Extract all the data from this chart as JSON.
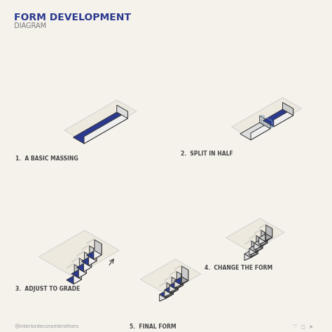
{
  "title": "FORM DEVELOPMENT",
  "subtitle": "DIAGRAM",
  "bg_color": "#F5F2EC",
  "blue": "#2B3A8F",
  "light_blue": "#7B9FC4",
  "white": "#FFFFFF",
  "gray": "#C8C8C8",
  "ground_color": "#EDE9DF",
  "ground_edge": "#CCCCCC",
  "label1": "1.  A BASIC MASSING",
  "label2": "2.  SPLIT IN HALF",
  "label3": "3.  ADJUST TO GRADE",
  "label4": "4.  CHANGE THE FORM",
  "label5": "5.  FINAL FORM",
  "footer": "@interiordecorpmbrothers",
  "title_color": "#2B3A8F",
  "subtitle_color": "#777777",
  "label_color": "#444444",
  "edge_color": "#333333",
  "front_color": "#F0F0F0",
  "side_color": "#CCCCCC",
  "shadow_color": "#AAAAAA"
}
